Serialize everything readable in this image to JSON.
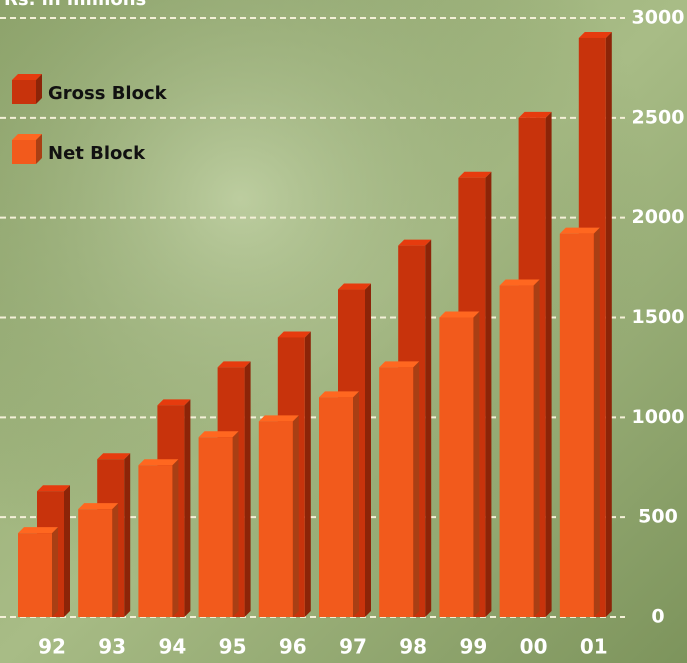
{
  "chart_data": {
    "type": "bar3d",
    "ylabel": "Rs. in millions",
    "categories": [
      "92",
      "93",
      "94",
      "95",
      "96",
      "97",
      "98",
      "99",
      "00",
      "01"
    ],
    "series": [
      {
        "name": "Gross Block",
        "color": "#c8330c",
        "values": [
          630,
          790,
          1060,
          1250,
          1400,
          1640,
          1860,
          2200,
          2500,
          2900
        ]
      },
      {
        "name": "Net Block",
        "color": "#f25a1c",
        "values": [
          420,
          540,
          760,
          900,
          980,
          1100,
          1250,
          1500,
          1660,
          1920
        ]
      }
    ],
    "ylim": [
      0,
      3000
    ],
    "yticks": [
      0,
      500,
      1000,
      1500,
      2000,
      2500,
      3000
    ],
    "grid": true,
    "legend": "top-left"
  }
}
